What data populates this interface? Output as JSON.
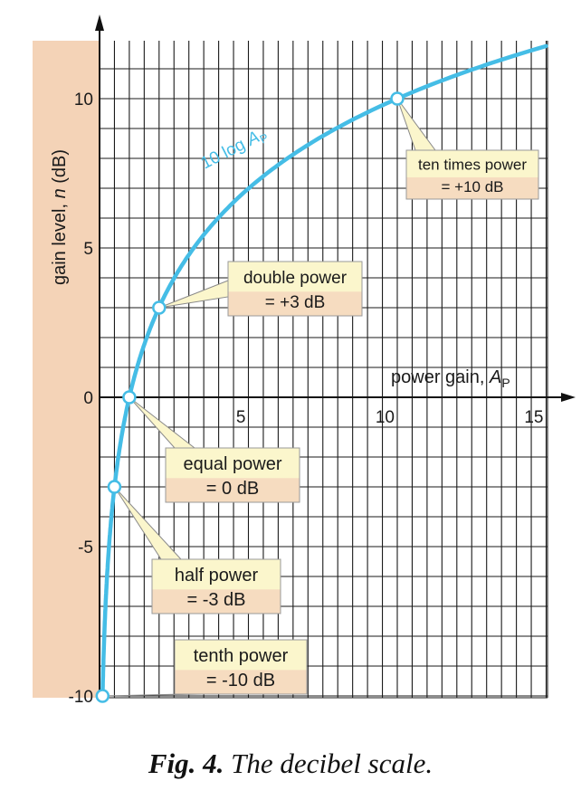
{
  "chart_data": {
    "type": "line",
    "x_axis_label": "power gain, ",
    "x_axis_label_italic": "A",
    "x_axis_label_sub": "P",
    "y_axis_label": "gain level, ",
    "y_axis_label_italic": "n",
    "y_axis_label_unit": " (dB)",
    "x_ticks": [
      "5",
      "10",
      "15"
    ],
    "y_ticks": [
      "10",
      "5",
      "0",
      "-5",
      "-10"
    ],
    "xlim": [
      0,
      15
    ],
    "ylim": [
      -10,
      10
    ],
    "grid": true,
    "series": [
      {
        "name": "10 log A P",
        "name_main": "10 log",
        "name_italic": "A",
        "name_sub": "P",
        "formula": "n = 10 log10(A_P)",
        "x": [
          0.1,
          0.15,
          0.2,
          0.3,
          0.5,
          0.75,
          1,
          1.5,
          2,
          3,
          4,
          5,
          6,
          8,
          10,
          12,
          15
        ],
        "y": [
          -10,
          -8.24,
          -6.99,
          -5.23,
          -3.01,
          -1.25,
          0,
          1.76,
          3.01,
          4.77,
          6.02,
          6.99,
          7.78,
          9.03,
          10,
          10.79,
          11.76
        ]
      }
    ],
    "annotations": [
      {
        "name": "ten-times-power",
        "line1": "ten times power",
        "line2": "= +10 dB",
        "x": 10,
        "y": 10
      },
      {
        "name": "double-power",
        "line1": "double power",
        "line2": "= +3 dB",
        "x": 2,
        "y": 3
      },
      {
        "name": "equal-power",
        "line1": "equal power",
        "line2": "= 0 dB",
        "x": 1,
        "y": 0
      },
      {
        "name": "half-power",
        "line1": "half power",
        "line2": "= -3 dB",
        "x": 0.5,
        "y": -3
      },
      {
        "name": "tenth-power",
        "line1": "tenth power",
        "line2": "= -10 dB",
        "x": 0.1,
        "y": -10
      }
    ],
    "colors": {
      "curve": "#45bde6",
      "band": "#f4d3b7",
      "callout_top": "#fbf6cc",
      "callout_bottom": "#f6dcc0",
      "grid": "#1a1a1a"
    }
  },
  "caption": {
    "fig_label": "Fig. 4.",
    "text": " The decibel scale."
  }
}
